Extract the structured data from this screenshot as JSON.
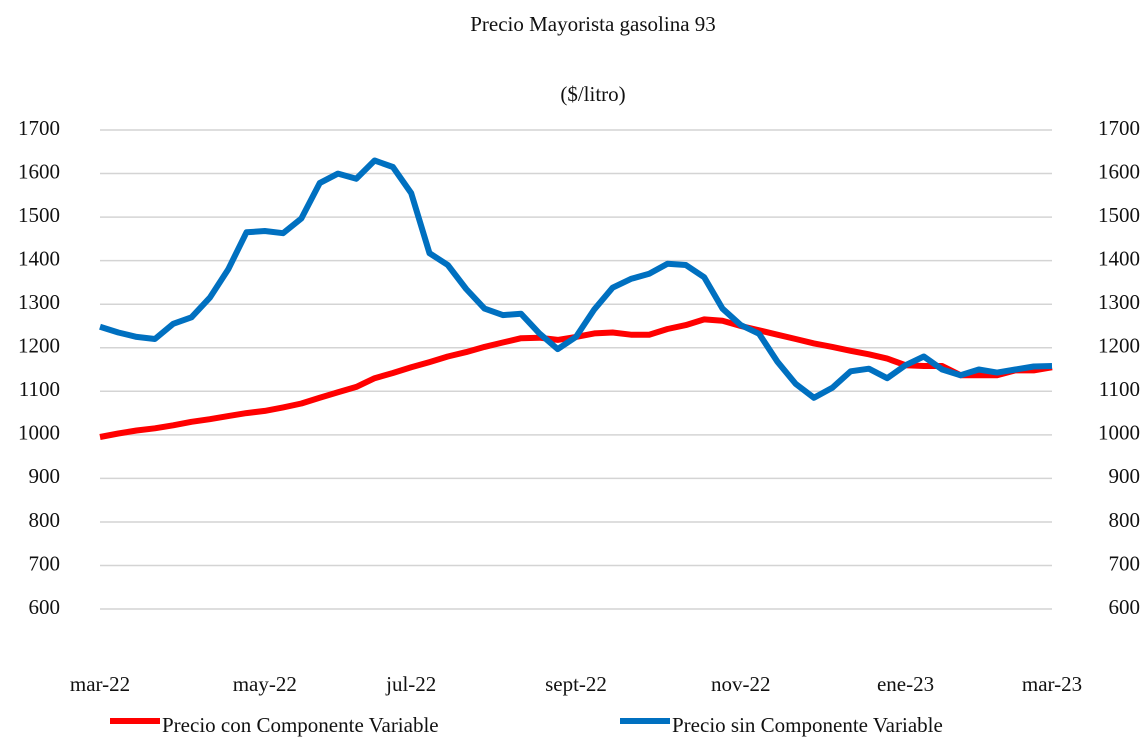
{
  "chart_data": {
    "type": "line",
    "title": "Precio Mayorista gasolina 93",
    "subtitle": "($/litro)",
    "categories": [
      "mar-22",
      null,
      null,
      null,
      null,
      null,
      null,
      null,
      null,
      "may-22",
      null,
      null,
      null,
      null,
      null,
      null,
      null,
      "jul-22",
      null,
      null,
      null,
      null,
      null,
      null,
      null,
      null,
      "sept-22",
      null,
      null,
      null,
      null,
      null,
      null,
      null,
      null,
      "nov-22",
      null,
      null,
      null,
      null,
      null,
      null,
      null,
      null,
      "ene-23",
      null,
      null,
      null,
      null,
      null,
      null,
      null,
      "mar-23"
    ],
    "series": [
      {
        "name": "Precio con Componente Variable",
        "color": "#ff0000",
        "values": [
          995,
          1003,
          1010,
          1015,
          1022,
          1030,
          1036,
          1043,
          1050,
          1055,
          1063,
          1072,
          1085,
          1098,
          1110,
          1130,
          1142,
          1155,
          1167,
          1180,
          1190,
          1202,
          1212,
          1222,
          1223,
          1218,
          1225,
          1233,
          1235,
          1230,
          1230,
          1243,
          1252,
          1265,
          1262,
          1250,
          1240,
          1230,
          1220,
          1210,
          1202,
          1193,
          1185,
          1175,
          1160,
          1158,
          1158,
          1137,
          1137,
          1137,
          1148,
          1148,
          1155
        ]
      },
      {
        "name": "Precio sin Componente Variable",
        "color": "#0070c0",
        "values": [
          1248,
          1235,
          1225,
          1220,
          1255,
          1270,
          1315,
          1380,
          1465,
          1468,
          1463,
          1497,
          1578,
          1600,
          1588,
          1630,
          1615,
          1555,
          1417,
          1390,
          1335,
          1290,
          1275,
          1278,
          1233,
          1197,
          1225,
          1288,
          1338,
          1358,
          1370,
          1393,
          1390,
          1362,
          1290,
          1252,
          1232,
          1168,
          1117,
          1085,
          1108,
          1146,
          1152,
          1130,
          1160,
          1180,
          1150,
          1137,
          1150,
          1143,
          1150,
          1157,
          1158
        ]
      }
    ],
    "ylim": [
      500,
      1700
    ],
    "yticks": [
      600,
      700,
      800,
      900,
      1000,
      1100,
      1200,
      1300,
      1400,
      1500,
      1600,
      1700
    ],
    "y2lim": [
      500,
      1700
    ],
    "y2ticks": [
      600,
      700,
      800,
      900,
      1000,
      1100,
      1200,
      1300,
      1400,
      1500,
      1600,
      1700
    ],
    "grid": true
  }
}
